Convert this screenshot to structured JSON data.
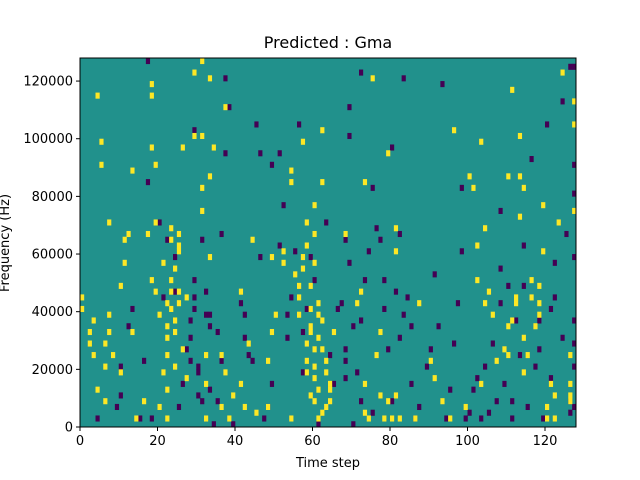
{
  "chart_data": {
    "type": "heatmap",
    "title": "Predicted : Gma",
    "xlabel": "Time step",
    "ylabel": "Frequency (Hz)",
    "xlim": [
      0,
      128
    ],
    "ylim": [
      0,
      128000
    ],
    "x_ticks": [
      0,
      20,
      40,
      60,
      80,
      100,
      120
    ],
    "y_ticks": [
      0,
      20000,
      40000,
      60000,
      80000,
      100000,
      120000
    ],
    "grid": false,
    "legend": "none",
    "colors": {
      "background": "#21918c",
      "high": "#fde725",
      "low": "#440154"
    },
    "yellow_cells": [
      [
        0,
        44000
      ],
      [
        0,
        40000
      ],
      [
        2,
        32000
      ],
      [
        2,
        28000
      ],
      [
        3,
        36000
      ],
      [
        3,
        24000
      ],
      [
        4,
        12000
      ],
      [
        4,
        114000
      ],
      [
        5,
        98000
      ],
      [
        5,
        90000
      ],
      [
        6,
        28000
      ],
      [
        6,
        20000
      ],
      [
        6,
        8000
      ],
      [
        7,
        70000
      ],
      [
        7,
        38000
      ],
      [
        7,
        32000
      ],
      [
        8,
        24000
      ],
      [
        10,
        18000
      ],
      [
        10,
        48000
      ],
      [
        11,
        56000
      ],
      [
        11,
        64000
      ],
      [
        12,
        66000
      ],
      [
        13,
        88000
      ],
      [
        13,
        32000
      ],
      [
        14,
        2000
      ],
      [
        16,
        8000
      ],
      [
        17,
        66000
      ],
      [
        18,
        50000
      ],
      [
        18,
        96000
      ],
      [
        18,
        118000
      ],
      [
        18,
        114000
      ],
      [
        19,
        90000
      ],
      [
        19,
        70000
      ],
      [
        19,
        46000
      ],
      [
        20,
        6000
      ],
      [
        20,
        38000
      ],
      [
        21,
        56000
      ],
      [
        21,
        18000
      ],
      [
        22,
        2000
      ],
      [
        22,
        42000
      ],
      [
        22,
        12000
      ],
      [
        22,
        24000
      ],
      [
        22,
        30000
      ],
      [
        22,
        34000
      ],
      [
        23,
        46000
      ],
      [
        23,
        40000
      ],
      [
        23,
        50000
      ],
      [
        23,
        64000
      ],
      [
        23,
        68000
      ],
      [
        24,
        32000
      ],
      [
        24,
        36000
      ],
      [
        24,
        54000
      ],
      [
        24,
        20000
      ],
      [
        25,
        60000
      ],
      [
        25,
        46000
      ],
      [
        25,
        42000
      ],
      [
        25,
        62000
      ],
      [
        25,
        66000
      ],
      [
        26,
        96000
      ],
      [
        26,
        26000
      ],
      [
        27,
        16000
      ],
      [
        27,
        44000
      ],
      [
        29,
        100000
      ],
      [
        29,
        122000
      ],
      [
        31,
        74000
      ],
      [
        31,
        100000
      ],
      [
        31,
        126000
      ],
      [
        31,
        82000
      ],
      [
        32,
        24000
      ],
      [
        32,
        14000
      ],
      [
        32,
        2000
      ],
      [
        33,
        120000
      ],
      [
        33,
        86000
      ],
      [
        33,
        58000
      ],
      [
        34,
        96000
      ],
      [
        36,
        6000
      ],
      [
        36,
        24000
      ],
      [
        37,
        110000
      ],
      [
        37,
        18000
      ],
      [
        38,
        2000
      ],
      [
        39,
        10000
      ],
      [
        41,
        46000
      ],
      [
        41,
        14000
      ],
      [
        42,
        6000
      ],
      [
        43,
        28000
      ],
      [
        44,
        64000
      ],
      [
        45,
        4000
      ],
      [
        48,
        22000
      ],
      [
        48,
        6000
      ],
      [
        49,
        58000
      ],
      [
        49,
        32000
      ],
      [
        50,
        38000
      ],
      [
        52,
        56000
      ],
      [
        52,
        60000
      ],
      [
        54,
        2000
      ],
      [
        54,
        88000
      ],
      [
        54,
        84000
      ],
      [
        55,
        52000
      ],
      [
        56,
        38000
      ],
      [
        56,
        44000
      ],
      [
        56,
        48000
      ],
      [
        57,
        98000
      ],
      [
        57,
        58000
      ],
      [
        57,
        54000
      ],
      [
        58,
        62000
      ],
      [
        58,
        70000
      ],
      [
        58,
        28000
      ],
      [
        58,
        22000
      ],
      [
        58,
        18000
      ],
      [
        59,
        48000
      ],
      [
        59,
        40000
      ],
      [
        59,
        34000
      ],
      [
        59,
        32000
      ],
      [
        59,
        10000
      ],
      [
        60,
        76000
      ],
      [
        60,
        66000
      ],
      [
        60,
        56000
      ],
      [
        60,
        26000
      ],
      [
        60,
        20000
      ],
      [
        60,
        16000
      ],
      [
        60,
        8000
      ],
      [
        61,
        42000
      ],
      [
        61,
        38000
      ],
      [
        61,
        30000
      ],
      [
        61,
        12000
      ],
      [
        61,
        2000
      ],
      [
        62,
        84000
      ],
      [
        62,
        102000
      ],
      [
        62,
        4000
      ],
      [
        62,
        26000
      ],
      [
        62,
        36000
      ],
      [
        63,
        22000
      ],
      [
        63,
        18000
      ],
      [
        63,
        6000
      ],
      [
        64,
        8000
      ],
      [
        64,
        14000
      ],
      [
        64,
        12000
      ],
      [
        65,
        32000
      ],
      [
        68,
        66000
      ],
      [
        71,
        42000
      ],
      [
        72,
        46000
      ],
      [
        73,
        84000
      ],
      [
        73,
        14000
      ],
      [
        73,
        4000
      ],
      [
        74,
        2000
      ],
      [
        75,
        120000
      ],
      [
        76,
        24000
      ],
      [
        77,
        32000
      ],
      [
        77,
        10000
      ],
      [
        78,
        2000
      ],
      [
        79,
        8000
      ],
      [
        79,
        94000
      ],
      [
        80,
        2000
      ],
      [
        81,
        68000
      ],
      [
        81,
        60000
      ],
      [
        81,
        10000
      ],
      [
        82,
        2000
      ],
      [
        86,
        2000
      ],
      [
        87,
        42000
      ],
      [
        90,
        22000
      ],
      [
        91,
        16000
      ],
      [
        93,
        8000
      ],
      [
        95,
        2000
      ],
      [
        96,
        102000
      ],
      [
        99,
        6000
      ],
      [
        100,
        86000
      ],
      [
        101,
        82000
      ],
      [
        102,
        50000
      ],
      [
        102,
        62000
      ],
      [
        103,
        14000
      ],
      [
        103,
        98000
      ],
      [
        104,
        68000
      ],
      [
        104,
        42000
      ],
      [
        105,
        46000
      ],
      [
        106,
        38000
      ],
      [
        107,
        22000
      ],
      [
        109,
        26000
      ],
      [
        110,
        34000
      ],
      [
        110,
        24000
      ],
      [
        110,
        86000
      ],
      [
        111,
        116000
      ],
      [
        111,
        36000
      ],
      [
        112,
        42000
      ],
      [
        112,
        44000
      ],
      [
        113,
        72000
      ],
      [
        113,
        100000
      ],
      [
        113,
        86000
      ],
      [
        114,
        82000
      ],
      [
        114,
        30000
      ],
      [
        114,
        18000
      ],
      [
        115,
        24000
      ],
      [
        116,
        44000
      ],
      [
        116,
        50000
      ],
      [
        117,
        34000
      ],
      [
        118,
        42000
      ],
      [
        118,
        38000
      ],
      [
        118,
        48000
      ],
      [
        119,
        60000
      ],
      [
        119,
        76000
      ],
      [
        120,
        2000
      ],
      [
        120,
        6000
      ],
      [
        121,
        14000
      ],
      [
        122,
        2000
      ],
      [
        122,
        10000
      ],
      [
        123,
        70000
      ],
      [
        124,
        122000
      ],
      [
        126,
        8000
      ],
      [
        126,
        10000
      ],
      [
        126,
        14000
      ],
      [
        126,
        24000
      ],
      [
        127,
        74000
      ],
      [
        127,
        104000
      ],
      [
        127,
        112000
      ]
    ],
    "purple_cells": [
      [
        4,
        2000
      ],
      [
        9,
        6000
      ],
      [
        10,
        10000
      ],
      [
        10,
        20000
      ],
      [
        12,
        34000
      ],
      [
        13,
        40000
      ],
      [
        15,
        2000
      ],
      [
        16,
        22000
      ],
      [
        17,
        84000
      ],
      [
        17,
        126000
      ],
      [
        18,
        2000
      ],
      [
        20,
        70000
      ],
      [
        21,
        44000
      ],
      [
        22,
        64000
      ],
      [
        24,
        58000
      ],
      [
        24,
        46000
      ],
      [
        25,
        6000
      ],
      [
        26,
        14000
      ],
      [
        27,
        26000
      ],
      [
        28,
        36000
      ],
      [
        28,
        30000
      ],
      [
        28,
        22000
      ],
      [
        29,
        102000
      ],
      [
        29,
        40000
      ],
      [
        29,
        44000
      ],
      [
        29,
        50000
      ],
      [
        30,
        20000
      ],
      [
        30,
        10000
      ],
      [
        30,
        18000
      ],
      [
        31,
        8000
      ],
      [
        31,
        64000
      ],
      [
        32,
        38000
      ],
      [
        32,
        46000
      ],
      [
        33,
        34000
      ],
      [
        33,
        38000
      ],
      [
        33,
        12000
      ],
      [
        34,
        0
      ],
      [
        35,
        32000
      ],
      [
        35,
        8000
      ],
      [
        36,
        22000
      ],
      [
        36,
        66000
      ],
      [
        37,
        94000
      ],
      [
        37,
        120000
      ],
      [
        38,
        110000
      ],
      [
        39,
        0
      ],
      [
        41,
        42000
      ],
      [
        42,
        30000
      ],
      [
        42,
        38000
      ],
      [
        43,
        24000
      ],
      [
        44,
        22000
      ],
      [
        45,
        104000
      ],
      [
        46,
        58000
      ],
      [
        46,
        94000
      ],
      [
        47,
        2000
      ],
      [
        48,
        6000
      ],
      [
        49,
        14000
      ],
      [
        49,
        90000
      ],
      [
        51,
        62000
      ],
      [
        51,
        94000
      ],
      [
        52,
        76000
      ],
      [
        53,
        38000
      ],
      [
        53,
        30000
      ],
      [
        54,
        44000
      ],
      [
        55,
        60000
      ],
      [
        56,
        104000
      ],
      [
        57,
        18000
      ],
      [
        57,
        32000
      ],
      [
        58,
        40000
      ],
      [
        59,
        58000
      ],
      [
        60,
        50000
      ],
      [
        61,
        0
      ],
      [
        63,
        70000
      ],
      [
        64,
        24000
      ],
      [
        65,
        14000
      ],
      [
        66,
        40000
      ],
      [
        67,
        42000
      ],
      [
        68,
        26000
      ],
      [
        68,
        22000
      ],
      [
        68,
        16000
      ],
      [
        68,
        64000
      ],
      [
        69,
        100000
      ],
      [
        69,
        56000
      ],
      [
        69,
        110000
      ],
      [
        70,
        0
      ],
      [
        70,
        34000
      ],
      [
        71,
        18000
      ],
      [
        72,
        36000
      ],
      [
        72,
        122000
      ],
      [
        72,
        8000
      ],
      [
        73,
        50000
      ],
      [
        74,
        60000
      ],
      [
        75,
        4000
      ],
      [
        75,
        82000
      ],
      [
        76,
        68000
      ],
      [
        77,
        64000
      ],
      [
        78,
        50000
      ],
      [
        78,
        40000
      ],
      [
        79,
        26000
      ],
      [
        80,
        96000
      ],
      [
        80,
        8000
      ],
      [
        81,
        46000
      ],
      [
        82,
        66000
      ],
      [
        82,
        30000
      ],
      [
        83,
        120000
      ],
      [
        83,
        38000
      ],
      [
        84,
        44000
      ],
      [
        85,
        14000
      ],
      [
        85,
        34000
      ],
      [
        86,
        2000
      ],
      [
        87,
        6000
      ],
      [
        89,
        20000
      ],
      [
        90,
        26000
      ],
      [
        91,
        52000
      ],
      [
        92,
        34000
      ],
      [
        93,
        118000
      ],
      [
        94,
        2000
      ],
      [
        95,
        12000
      ],
      [
        96,
        28000
      ],
      [
        97,
        42000
      ],
      [
        98,
        60000
      ],
      [
        98,
        82000
      ],
      [
        99,
        2000
      ],
      [
        100,
        4000
      ],
      [
        101,
        12000
      ],
      [
        102,
        16000
      ],
      [
        103,
        2000
      ],
      [
        104,
        20000
      ],
      [
        105,
        4000
      ],
      [
        106,
        28000
      ],
      [
        107,
        8000
      ],
      [
        108,
        74000
      ],
      [
        108,
        54000
      ],
      [
        108,
        42000
      ],
      [
        109,
        14000
      ],
      [
        110,
        48000
      ],
      [
        111,
        2000
      ],
      [
        111,
        8000
      ],
      [
        112,
        36000
      ],
      [
        113,
        24000
      ],
      [
        114,
        62000
      ],
      [
        114,
        48000
      ],
      [
        115,
        6000
      ],
      [
        116,
        92000
      ],
      [
        117,
        20000
      ],
      [
        118,
        26000
      ],
      [
        118,
        36000
      ],
      [
        119,
        2000
      ],
      [
        120,
        104000
      ],
      [
        121,
        16000
      ],
      [
        121,
        40000
      ],
      [
        122,
        44000
      ],
      [
        122,
        56000
      ],
      [
        124,
        30000
      ],
      [
        124,
        112000
      ],
      [
        125,
        66000
      ],
      [
        126,
        4000
      ],
      [
        126,
        8000
      ],
      [
        126,
        124000
      ],
      [
        127,
        6000
      ],
      [
        127,
        20000
      ],
      [
        127,
        28000
      ],
      [
        127,
        36000
      ],
      [
        127,
        58000
      ],
      [
        127,
        80000
      ],
      [
        127,
        90000
      ],
      [
        127,
        124000
      ]
    ]
  }
}
